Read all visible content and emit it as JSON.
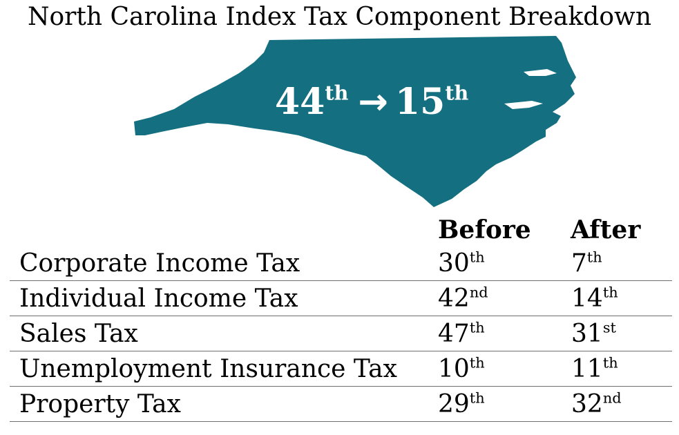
{
  "title": "North Carolina Index Tax Component Breakdown",
  "map": {
    "icon": "north-carolina-state-map",
    "fill_color": "#146f80",
    "overall_before": "44",
    "overall_before_suffix": "th",
    "arrow": "→",
    "overall_after": "15",
    "overall_after_suffix": "th"
  },
  "columns": {
    "before": "Before",
    "after": "After"
  },
  "rows": [
    {
      "name": "Corporate Income Tax",
      "before": "30",
      "before_suffix": "th",
      "after": "7",
      "after_suffix": "th"
    },
    {
      "name": "Individual Income Tax",
      "before": "42",
      "before_suffix": "nd",
      "after": "14",
      "after_suffix": "th"
    },
    {
      "name": "Sales Tax",
      "before": "47",
      "before_suffix": "th",
      "after": "31",
      "after_suffix": "st"
    },
    {
      "name": "Unemployment Insurance Tax",
      "before": "10",
      "before_suffix": "th",
      "after": "11",
      "after_suffix": "th"
    },
    {
      "name": "Property Tax",
      "before": "29",
      "before_suffix": "th",
      "after": "32",
      "after_suffix": "nd"
    }
  ]
}
